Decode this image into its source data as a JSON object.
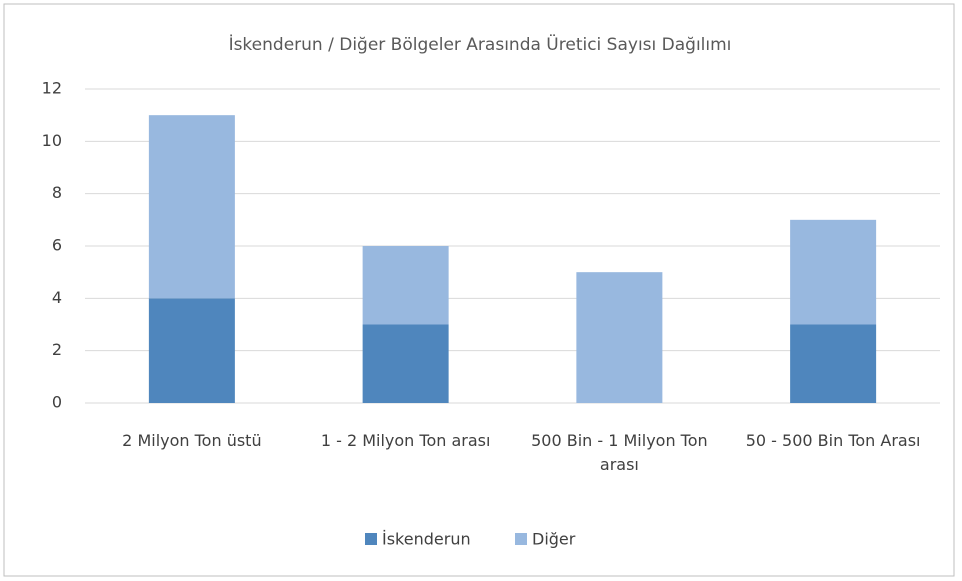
{
  "chart_data": {
    "type": "stacked_bar",
    "title": "İskenderun / Diğer Bölgeler Arasında Üretici Sayısı Dağılımı",
    "categories": [
      "2 Milyon Ton üstü",
      "1 - 2 Milyon Ton arası",
      "500 Bin - 1 Milyon Ton arası",
      "50 - 500 Bin Ton Arası"
    ],
    "series": [
      {
        "name": "İskenderun",
        "color": "#4f86bd",
        "values": [
          4,
          3,
          0,
          3
        ]
      },
      {
        "name": "Diğer",
        "color": "#98b8df",
        "values": [
          7,
          3,
          5,
          4
        ]
      }
    ],
    "ylim": [
      0,
      12
    ],
    "yticks": [
      0,
      2,
      4,
      6,
      8,
      10,
      12
    ],
    "grid": true,
    "legend": "bottom"
  }
}
